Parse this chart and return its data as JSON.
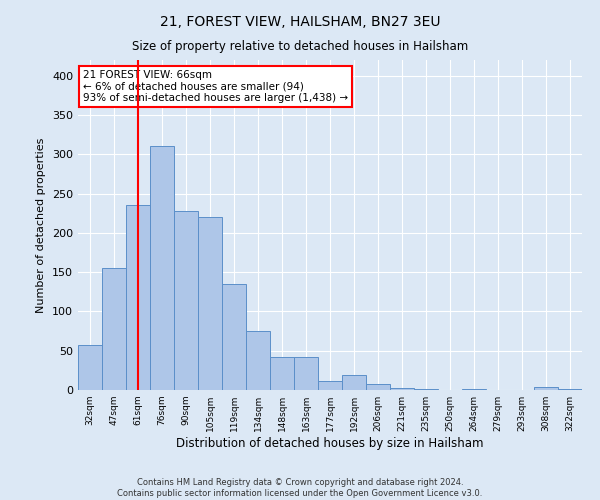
{
  "title": "21, FOREST VIEW, HAILSHAM, BN27 3EU",
  "subtitle": "Size of property relative to detached houses in Hailsham",
  "xlabel": "Distribution of detached houses by size in Hailsham",
  "ylabel": "Number of detached properties",
  "categories": [
    "32sqm",
    "47sqm",
    "61sqm",
    "76sqm",
    "90sqm",
    "105sqm",
    "119sqm",
    "134sqm",
    "148sqm",
    "163sqm",
    "177sqm",
    "192sqm",
    "206sqm",
    "221sqm",
    "235sqm",
    "250sqm",
    "264sqm",
    "279sqm",
    "293sqm",
    "308sqm",
    "322sqm"
  ],
  "values": [
    57,
    155,
    235,
    310,
    228,
    220,
    135,
    75,
    42,
    42,
    12,
    19,
    8,
    3,
    1,
    0,
    1,
    0,
    0,
    4,
    1
  ],
  "bar_color": "#aec6e8",
  "bar_edge_color": "#5b8fc9",
  "vline_x": 2,
  "vline_color": "red",
  "annotation_text": "21 FOREST VIEW: 66sqm\n← 6% of detached houses are smaller (94)\n93% of semi-detached houses are larger (1,438) →",
  "annotation_box_color": "white",
  "annotation_box_edge_color": "red",
  "ylim": [
    0,
    420
  ],
  "yticks": [
    0,
    50,
    100,
    150,
    200,
    250,
    300,
    350,
    400
  ],
  "footnote": "Contains HM Land Registry data © Crown copyright and database right 2024.\nContains public sector information licensed under the Open Government Licence v3.0.",
  "background_color": "#dce8f5",
  "plot_bg_color": "#dce8f5",
  "fig_width": 6.0,
  "fig_height": 5.0,
  "fig_dpi": 100
}
